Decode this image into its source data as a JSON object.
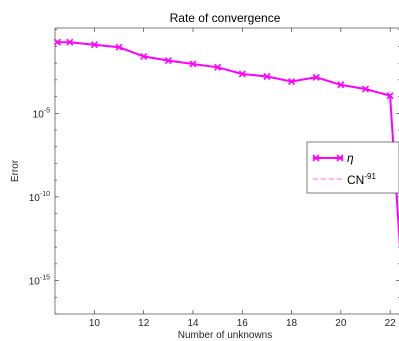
{
  "chart_data": {
    "type": "line",
    "title": "Rate of convergence",
    "xlabel": "Number of unknowns",
    "ylabel": "Error",
    "xlim": [
      8.4,
      22.4
    ],
    "ylog": true,
    "ylim_exp": [
      -17,
      0.1
    ],
    "x_ticks": [
      10,
      12,
      14,
      16,
      18,
      20,
      22
    ],
    "y_ticks": [
      {
        "exp": -5,
        "label": "10",
        "sup": "-5"
      },
      {
        "exp": -10,
        "label": "10",
        "sup": "-10"
      },
      {
        "exp": -15,
        "label": "10",
        "sup": "-15"
      }
    ],
    "series": [
      {
        "name": "η",
        "color": "#ff00ff",
        "marker": "x",
        "line_style": "solid",
        "x": [
          8.5,
          9,
          10,
          11,
          12,
          13,
          14,
          15,
          16,
          17,
          18,
          19,
          20,
          21,
          22,
          22.4
        ],
        "y_exp": [
          -0.75,
          -0.75,
          -0.9,
          -1.05,
          -1.6,
          -1.85,
          -2.05,
          -2.25,
          -2.65,
          -2.8,
          -3.1,
          -2.85,
          -3.3,
          -3.55,
          -3.95,
          -13
        ]
      },
      {
        "name": "CN",
        "name_sup": "-91",
        "color": "#ff00ff",
        "marker": "none",
        "line_style": "dashed",
        "x": [],
        "y_exp": []
      }
    ],
    "legend": "right"
  }
}
